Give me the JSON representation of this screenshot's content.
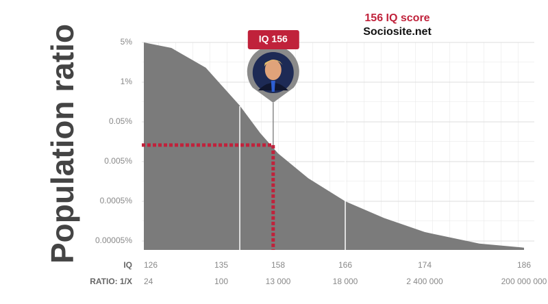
{
  "chart_data": {
    "type": "area",
    "title": "156 IQ score",
    "subtitle": "Sociosite.net",
    "y_axis_label": "Population ratio",
    "x_axis_label": "IQ",
    "ratio_axis_label": "RATIO: 1/X",
    "x": [
      126,
      129.2,
      133.2,
      135,
      142.5,
      150.8,
      158,
      161.6,
      166,
      169.9,
      174,
      180.6,
      186
    ],
    "values": [
      5,
      4.0,
      1.8,
      0.81,
      0.17,
      0.026,
      0.008,
      0.0019,
      0.0005,
      0.00019,
      8.4e-05,
      4.3e-05,
      3.4e-05
    ],
    "color": "#7b7b7b",
    "xticks": [
      126,
      135,
      158,
      166,
      174,
      186
    ],
    "ratio_labels": [
      "24",
      "100",
      "13 000",
      "18 000",
      "2 400 000",
      "200 000 000"
    ],
    "ylim": [
      3e-05,
      5
    ],
    "yticks": [
      {
        "value": 5,
        "label": "5%"
      },
      {
        "value": 1,
        "label": "1%"
      },
      {
        "value": 0.05,
        "label": "0.05%"
      },
      {
        "value": 0.005,
        "label": "0.005%"
      },
      {
        "value": 0.0005,
        "label": "0.0005%"
      },
      {
        "value": 5e-05,
        "label": "0.00005%"
      }
    ],
    "log_scale": true,
    "grid": true,
    "reference_lines": [
      142.5,
      166
    ],
    "highlight": {
      "label": "IQ 156",
      "x": 156,
      "y": 0.013,
      "color": "#c0223b"
    }
  }
}
